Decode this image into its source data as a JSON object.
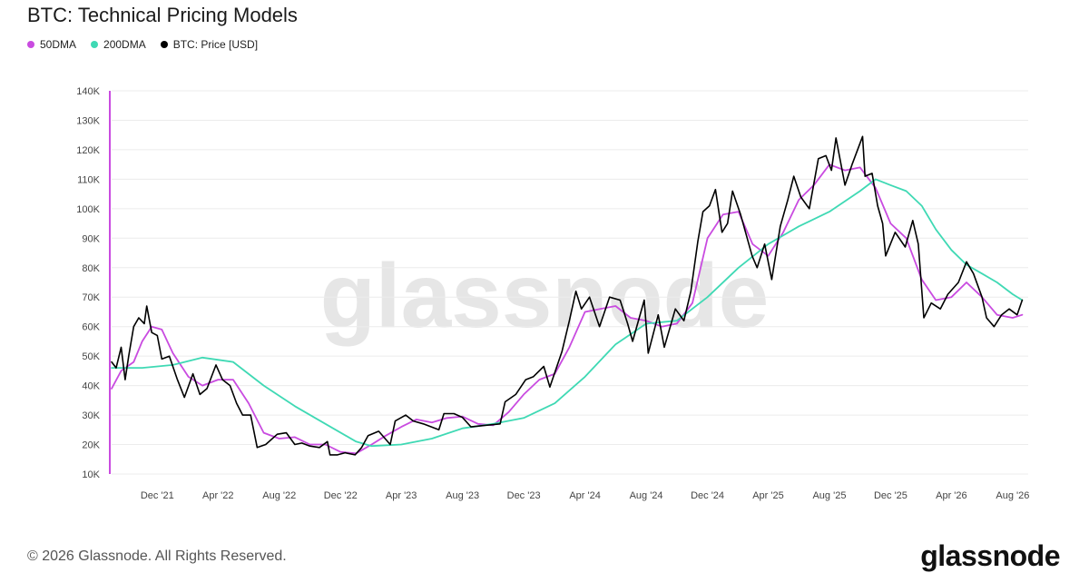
{
  "title": "BTC: Technical Pricing Models",
  "footer": {
    "copyright": "© 2026 Glassnode. All Rights Reserved.",
    "logo": "glassnode"
  },
  "watermark": "glassnode",
  "colors": {
    "ma50": "#c94be0",
    "ma200": "#3fd9b4",
    "price": "#000000",
    "axis_accent": "#c94be0",
    "grid": "#ececec"
  },
  "chart_data": {
    "type": "line",
    "title": "BTC: Technical Pricing Models",
    "ylim": [
      10000,
      140000
    ],
    "yticks": [
      {
        "v": 10000,
        "label": "10K"
      },
      {
        "v": 20000,
        "label": "20K"
      },
      {
        "v": 30000,
        "label": "30K"
      },
      {
        "v": 40000,
        "label": "40K"
      },
      {
        "v": 50000,
        "label": "50K"
      },
      {
        "v": 60000,
        "label": "60K"
      },
      {
        "v": 70000,
        "label": "70K"
      },
      {
        "v": 80000,
        "label": "80K"
      },
      {
        "v": 90000,
        "label": "90K"
      },
      {
        "v": 100000,
        "label": "100K"
      },
      {
        "v": 110000,
        "label": "110K"
      },
      {
        "v": 120000,
        "label": "120K"
      },
      {
        "v": 130000,
        "label": "130K"
      },
      {
        "v": 140000,
        "label": "140K"
      }
    ],
    "xlim": [
      "2021-09-01",
      "2026-09-01"
    ],
    "xticks": [
      {
        "date": "2021-12-01",
        "label": "Dec '21"
      },
      {
        "date": "2022-04-01",
        "label": "Apr '22"
      },
      {
        "date": "2022-08-01",
        "label": "Aug '22"
      },
      {
        "date": "2022-12-01",
        "label": "Dec '22"
      },
      {
        "date": "2023-04-01",
        "label": "Apr '23"
      },
      {
        "date": "2023-08-01",
        "label": "Aug '23"
      },
      {
        "date": "2023-12-01",
        "label": "Dec '23"
      },
      {
        "date": "2024-04-01",
        "label": "Apr '24"
      },
      {
        "date": "2024-08-01",
        "label": "Aug '24"
      },
      {
        "date": "2024-12-01",
        "label": "Dec '24"
      },
      {
        "date": "2025-04-01",
        "label": "Apr '25"
      },
      {
        "date": "2025-08-01",
        "label": "Aug '25"
      },
      {
        "date": "2025-12-01",
        "label": "Dec '25"
      },
      {
        "date": "2026-04-01",
        "label": "Apr '26"
      },
      {
        "date": "2026-08-01",
        "label": "Aug '26"
      }
    ],
    "grid": true,
    "legend_position": "top-left",
    "series": [
      {
        "name": "50DMA",
        "color": "#c94be0",
        "points": [
          [
            "2021-09-01",
            39000
          ],
          [
            "2021-09-20",
            45000
          ],
          [
            "2021-10-15",
            48000
          ],
          [
            "2021-11-01",
            55000
          ],
          [
            "2021-11-20",
            60000
          ],
          [
            "2021-12-10",
            59000
          ],
          [
            "2022-01-01",
            51000
          ],
          [
            "2022-02-01",
            43000
          ],
          [
            "2022-03-01",
            40000
          ],
          [
            "2022-04-01",
            42000
          ],
          [
            "2022-05-01",
            42000
          ],
          [
            "2022-06-01",
            34000
          ],
          [
            "2022-07-01",
            24000
          ],
          [
            "2022-08-01",
            22000
          ],
          [
            "2022-09-01",
            22500
          ],
          [
            "2022-10-01",
            20000
          ],
          [
            "2022-11-01",
            20000
          ],
          [
            "2022-12-01",
            17500
          ],
          [
            "2023-01-01",
            17000
          ],
          [
            "2023-02-01",
            20000
          ],
          [
            "2023-03-01",
            23000
          ],
          [
            "2023-04-01",
            26000
          ],
          [
            "2023-05-01",
            28500
          ],
          [
            "2023-06-01",
            27500
          ],
          [
            "2023-07-01",
            29000
          ],
          [
            "2023-08-01",
            29500
          ],
          [
            "2023-09-01",
            27000
          ],
          [
            "2023-10-01",
            26500
          ],
          [
            "2023-11-01",
            31000
          ],
          [
            "2023-12-01",
            37000
          ],
          [
            "2024-01-01",
            42000
          ],
          [
            "2024-02-01",
            44000
          ],
          [
            "2024-03-01",
            53000
          ],
          [
            "2024-04-01",
            65000
          ],
          [
            "2024-05-01",
            66000
          ],
          [
            "2024-06-01",
            67000
          ],
          [
            "2024-07-01",
            63000
          ],
          [
            "2024-08-01",
            62000
          ],
          [
            "2024-09-01",
            60000
          ],
          [
            "2024-10-01",
            61000
          ],
          [
            "2024-11-01",
            68000
          ],
          [
            "2024-12-01",
            90000
          ],
          [
            "2025-01-01",
            98000
          ],
          [
            "2025-02-01",
            99000
          ],
          [
            "2025-03-01",
            88000
          ],
          [
            "2025-04-01",
            84000
          ],
          [
            "2025-05-01",
            92000
          ],
          [
            "2025-06-01",
            103000
          ],
          [
            "2025-07-01",
            108000
          ],
          [
            "2025-08-01",
            115000
          ],
          [
            "2025-09-01",
            113000
          ],
          [
            "2025-10-01",
            114000
          ],
          [
            "2025-11-01",
            107000
          ],
          [
            "2025-12-01",
            95000
          ],
          [
            "2026-01-01",
            90000
          ],
          [
            "2026-02-01",
            76000
          ],
          [
            "2026-03-01",
            69000
          ],
          [
            "2026-04-01",
            70000
          ],
          [
            "2026-05-01",
            75000
          ],
          [
            "2026-06-01",
            70000
          ],
          [
            "2026-07-01",
            64000
          ],
          [
            "2026-08-01",
            63000
          ],
          [
            "2026-08-20",
            64000
          ]
        ]
      },
      {
        "name": "200DMA",
        "color": "#3fd9b4",
        "points": [
          [
            "2021-09-01",
            46000
          ],
          [
            "2021-11-01",
            46000
          ],
          [
            "2022-01-01",
            47000
          ],
          [
            "2022-03-01",
            49500
          ],
          [
            "2022-05-01",
            48000
          ],
          [
            "2022-07-01",
            40000
          ],
          [
            "2022-09-01",
            33000
          ],
          [
            "2022-11-01",
            27000
          ],
          [
            "2023-01-01",
            21000
          ],
          [
            "2023-02-01",
            19500
          ],
          [
            "2023-04-01",
            20000
          ],
          [
            "2023-06-01",
            22000
          ],
          [
            "2023-08-01",
            25500
          ],
          [
            "2023-10-01",
            27000
          ],
          [
            "2023-12-01",
            29000
          ],
          [
            "2024-02-01",
            34000
          ],
          [
            "2024-04-01",
            43000
          ],
          [
            "2024-06-01",
            54000
          ],
          [
            "2024-08-01",
            61000
          ],
          [
            "2024-10-01",
            62000
          ],
          [
            "2024-12-01",
            70000
          ],
          [
            "2025-02-01",
            80000
          ],
          [
            "2025-04-01",
            88000
          ],
          [
            "2025-06-01",
            94000
          ],
          [
            "2025-08-01",
            99000
          ],
          [
            "2025-10-01",
            106000
          ],
          [
            "2025-11-01",
            110000
          ],
          [
            "2025-12-01",
            108000
          ],
          [
            "2026-01-01",
            106000
          ],
          [
            "2026-02-01",
            101000
          ],
          [
            "2026-03-01",
            93000
          ],
          [
            "2026-04-01",
            86000
          ],
          [
            "2026-05-01",
            81000
          ],
          [
            "2026-06-01",
            78000
          ],
          [
            "2026-07-01",
            75000
          ],
          [
            "2026-08-01",
            71000
          ],
          [
            "2026-08-20",
            69000
          ]
        ]
      },
      {
        "name": "BTC: Price [USD]",
        "color": "#000000",
        "points": [
          [
            "2021-09-01",
            48000
          ],
          [
            "2021-09-10",
            46000
          ],
          [
            "2021-09-20",
            53000
          ],
          [
            "2021-09-28",
            42000
          ],
          [
            "2021-10-05",
            50000
          ],
          [
            "2021-10-15",
            60000
          ],
          [
            "2021-10-25",
            63000
          ],
          [
            "2021-11-05",
            61000
          ],
          [
            "2021-11-10",
            67000
          ],
          [
            "2021-11-20",
            58000
          ],
          [
            "2021-12-01",
            57000
          ],
          [
            "2021-12-10",
            49000
          ],
          [
            "2021-12-25",
            50000
          ],
          [
            "2022-01-10",
            42000
          ],
          [
            "2022-01-24",
            36000
          ],
          [
            "2022-02-10",
            44000
          ],
          [
            "2022-02-24",
            37000
          ],
          [
            "2022-03-10",
            39000
          ],
          [
            "2022-03-28",
            47000
          ],
          [
            "2022-04-10",
            42000
          ],
          [
            "2022-04-25",
            40000
          ],
          [
            "2022-05-08",
            34000
          ],
          [
            "2022-05-20",
            30000
          ],
          [
            "2022-06-05",
            30000
          ],
          [
            "2022-06-18",
            19000
          ],
          [
            "2022-07-05",
            20000
          ],
          [
            "2022-07-28",
            23500
          ],
          [
            "2022-08-15",
            24000
          ],
          [
            "2022-09-01",
            20000
          ],
          [
            "2022-09-15",
            20500
          ],
          [
            "2022-10-01",
            19500
          ],
          [
            "2022-10-20",
            19000
          ],
          [
            "2022-11-05",
            21000
          ],
          [
            "2022-11-10",
            16500
          ],
          [
            "2022-11-25",
            16500
          ],
          [
            "2022-12-10",
            17200
          ],
          [
            "2022-12-30",
            16500
          ],
          [
            "2023-01-12",
            19000
          ],
          [
            "2023-01-25",
            23000
          ],
          [
            "2023-02-15",
            24500
          ],
          [
            "2023-03-10",
            20000
          ],
          [
            "2023-03-20",
            28000
          ],
          [
            "2023-04-10",
            30000
          ],
          [
            "2023-04-25",
            28000
          ],
          [
            "2023-05-15",
            27000
          ],
          [
            "2023-06-15",
            25000
          ],
          [
            "2023-06-25",
            30500
          ],
          [
            "2023-07-15",
            30500
          ],
          [
            "2023-08-01",
            29200
          ],
          [
            "2023-08-18",
            26000
          ],
          [
            "2023-09-15",
            26500
          ],
          [
            "2023-10-15",
            27000
          ],
          [
            "2023-10-25",
            34500
          ],
          [
            "2023-11-15",
            37000
          ],
          [
            "2023-12-05",
            42000
          ],
          [
            "2023-12-20",
            43000
          ],
          [
            "2024-01-10",
            46500
          ],
          [
            "2024-01-22",
            39500
          ],
          [
            "2024-02-15",
            51500
          ],
          [
            "2024-03-01",
            62000
          ],
          [
            "2024-03-14",
            72000
          ],
          [
            "2024-03-25",
            66000
          ],
          [
            "2024-04-10",
            70000
          ],
          [
            "2024-04-30",
            60000
          ],
          [
            "2024-05-20",
            70000
          ],
          [
            "2024-06-10",
            69000
          ],
          [
            "2024-06-25",
            61000
          ],
          [
            "2024-07-05",
            55000
          ],
          [
            "2024-07-28",
            69000
          ],
          [
            "2024-08-05",
            51000
          ],
          [
            "2024-08-25",
            64000
          ],
          [
            "2024-09-06",
            53000
          ],
          [
            "2024-09-28",
            66000
          ],
          [
            "2024-10-15",
            62000
          ],
          [
            "2024-10-29",
            72000
          ],
          [
            "2024-11-12",
            89000
          ],
          [
            "2024-11-22",
            99000
          ],
          [
            "2024-12-05",
            101000
          ],
          [
            "2024-12-17",
            106500
          ],
          [
            "2024-12-30",
            92000
          ],
          [
            "2025-01-10",
            95000
          ],
          [
            "2025-01-20",
            106000
          ],
          [
            "2025-02-05",
            98000
          ],
          [
            "2025-02-28",
            84000
          ],
          [
            "2025-03-10",
            80000
          ],
          [
            "2025-03-25",
            88000
          ],
          [
            "2025-04-08",
            76000
          ],
          [
            "2025-04-25",
            94000
          ],
          [
            "2025-05-10",
            103000
          ],
          [
            "2025-05-22",
            111000
          ],
          [
            "2025-06-05",
            104000
          ],
          [
            "2025-06-22",
            100000
          ],
          [
            "2025-07-10",
            117000
          ],
          [
            "2025-07-25",
            118000
          ],
          [
            "2025-08-05",
            113000
          ],
          [
            "2025-08-14",
            124000
          ],
          [
            "2025-09-01",
            108000
          ],
          [
            "2025-09-15",
            115000
          ],
          [
            "2025-10-06",
            124500
          ],
          [
            "2025-10-11",
            111000
          ],
          [
            "2025-10-25",
            112000
          ],
          [
            "2025-11-05",
            101000
          ],
          [
            "2025-11-15",
            95000
          ],
          [
            "2025-11-21",
            84000
          ],
          [
            "2025-12-10",
            92000
          ],
          [
            "2025-12-30",
            87000
          ],
          [
            "2026-01-14",
            96000
          ],
          [
            "2026-01-25",
            88000
          ],
          [
            "2026-02-05",
            63000
          ],
          [
            "2026-02-20",
            68000
          ],
          [
            "2026-03-10",
            66000
          ],
          [
            "2026-03-25",
            71000
          ],
          [
            "2026-04-15",
            75000
          ],
          [
            "2026-05-01",
            82000
          ],
          [
            "2026-05-15",
            78000
          ],
          [
            "2026-06-01",
            70000
          ],
          [
            "2026-06-10",
            63000
          ],
          [
            "2026-06-25",
            60000
          ],
          [
            "2026-07-10",
            64000
          ],
          [
            "2026-07-25",
            66000
          ],
          [
            "2026-08-10",
            64000
          ],
          [
            "2026-08-20",
            69000
          ]
        ]
      }
    ]
  }
}
